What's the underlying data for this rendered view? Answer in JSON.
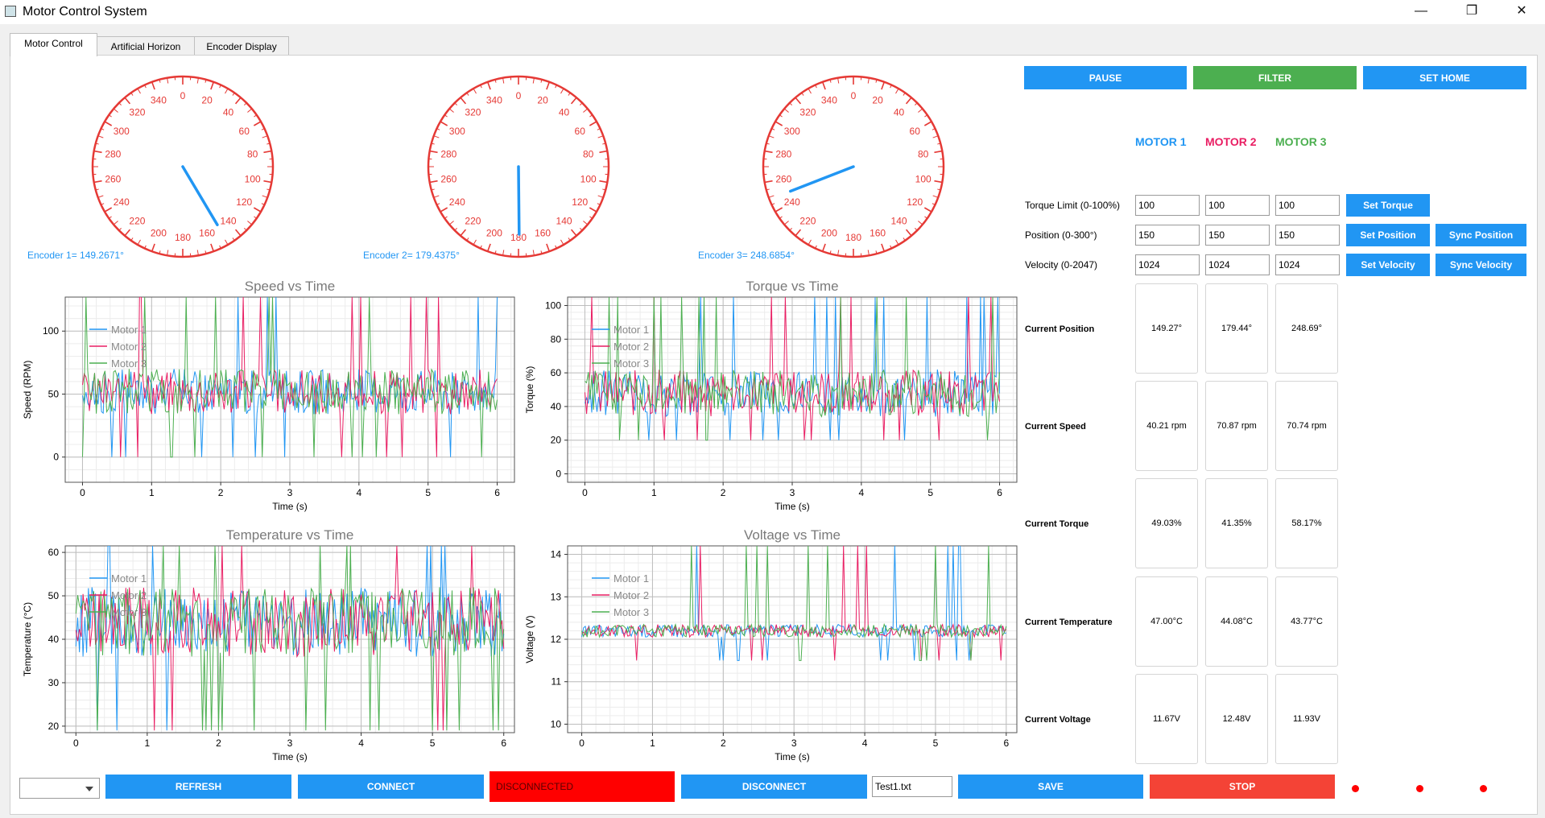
{
  "window": {
    "title": "Motor Control System"
  },
  "tabs": [
    {
      "label": "Motor Control"
    },
    {
      "label": "Artificial Horizon"
    },
    {
      "label": "Encoder Display"
    }
  ],
  "gauges": [
    {
      "label": "Encoder 1= 149.2671°",
      "angle_deg": 149.2671,
      "color": "#2196f3"
    },
    {
      "label": "Encoder 2= 179.4375°",
      "angle_deg": 179.4375,
      "color": "#2196f3"
    },
    {
      "label": "Encoder 3= 248.6854°",
      "angle_deg": 248.6854,
      "color": "#2196f3"
    }
  ],
  "gauge_scale": {
    "ticks": [
      "0",
      "20",
      "40",
      "60",
      "80",
      "100",
      "120",
      "140",
      "160",
      "180",
      "200",
      "220",
      "240",
      "260",
      "280",
      "300",
      "320",
      "340"
    ],
    "color": "#e53935"
  },
  "controls": {
    "pause": "PAUSE",
    "filter": "FILTER",
    "set_home": "SET HOME",
    "motor_headers": [
      {
        "label": "MOTOR 1",
        "color": "#2196f3"
      },
      {
        "label": "MOTOR 2",
        "color": "#e91e63"
      },
      {
        "label": "MOTOR 3",
        "color": "#4caf50"
      }
    ],
    "torque_label": "Torque Limit (0-100%)",
    "torque_values": [
      "100",
      "100",
      "100"
    ],
    "set_torque": "Set Torque",
    "position_label": "Position (0-300°)",
    "position_values": [
      "150",
      "150",
      "150"
    ],
    "set_position": "Set Position",
    "sync_position": "Sync Position",
    "velocity_label": "Velocity (0-2047)",
    "velocity_values": [
      "1024",
      "1024",
      "1024"
    ],
    "set_velocity": "Set Velocity",
    "sync_velocity": "Sync Velocity"
  },
  "readouts": [
    {
      "label": "Current Position",
      "values": [
        "149.27°",
        "179.44°",
        "248.69°"
      ]
    },
    {
      "label": "Current Speed",
      "values": [
        "40.21 rpm",
        "70.87 rpm",
        "70.74 rpm"
      ]
    },
    {
      "label": "Current Torque",
      "values": [
        "49.03%",
        "41.35%",
        "58.17%"
      ]
    },
    {
      "label": "Current Temperature",
      "values": [
        "47.00°C",
        "44.08°C",
        "43.77°C"
      ]
    },
    {
      "label": "Current Voltage",
      "values": [
        "11.67V",
        "12.48V",
        "11.93V"
      ]
    }
  ],
  "chart_data": [
    {
      "type": "line",
      "title": "Speed vs Time",
      "xlabel": "Time (s)",
      "ylabel": "Speed (RPM)",
      "xlim": [
        -0.25,
        6.25
      ],
      "ylim": [
        -20,
        127
      ],
      "xticks": [
        0,
        1,
        2,
        3,
        4,
        5,
        6
      ],
      "yticks": [
        0,
        50,
        100
      ],
      "grid": true,
      "legend_position": "top-left",
      "center": 52,
      "noise": 18,
      "spike": [
        0,
        127
      ],
      "series": [
        {
          "name": "Motor 1",
          "color": "#2196f3"
        },
        {
          "name": "Motor 2",
          "color": "#e91e63"
        },
        {
          "name": "Motor 3",
          "color": "#4caf50"
        }
      ]
    },
    {
      "type": "line",
      "title": "Torque vs Time",
      "xlabel": "Time (s)",
      "ylabel": "Torque (%)",
      "xlim": [
        -0.25,
        6.25
      ],
      "ylim": [
        -5,
        105
      ],
      "xticks": [
        0,
        1,
        2,
        3,
        4,
        5,
        6
      ],
      "yticks": [
        0,
        20,
        40,
        60,
        80,
        100
      ],
      "grid": true,
      "legend_position": "top-left",
      "center": 48,
      "noise": 14,
      "spike": [
        20,
        105
      ],
      "series": [
        {
          "name": "Motor 1",
          "color": "#2196f3"
        },
        {
          "name": "Motor 2",
          "color": "#e91e63"
        },
        {
          "name": "Motor 3",
          "color": "#4caf50"
        }
      ]
    },
    {
      "type": "line",
      "title": "Temperature vs Time",
      "xlabel": "Time (s)",
      "ylabel": "Temperature (°C)",
      "xlim": [
        -0.15,
        6.15
      ],
      "ylim": [
        18.5,
        61.5
      ],
      "xticks": [
        0,
        1,
        2,
        3,
        4,
        5,
        6
      ],
      "yticks": [
        20,
        30,
        40,
        50,
        60
      ],
      "grid": true,
      "legend_position": "top-left",
      "center": 44,
      "noise": 8,
      "spike": [
        19,
        61.5
      ],
      "series": [
        {
          "name": "Motor 1",
          "color": "#2196f3"
        },
        {
          "name": "Motor 2",
          "color": "#e91e63"
        },
        {
          "name": "Motor 3",
          "color": "#4caf50"
        }
      ]
    },
    {
      "type": "line",
      "title": "Voltage vs Time",
      "xlabel": "Time (s)",
      "ylabel": "Voltage (V)",
      "xlim": [
        -0.2,
        6.15
      ],
      "ylim": [
        9.8,
        14.2
      ],
      "xticks": [
        0,
        1,
        2,
        3,
        4,
        5,
        6
      ],
      "yticks": [
        10,
        11,
        12,
        13,
        14
      ],
      "grid": true,
      "legend_position": "top-left",
      "center": 12.2,
      "noise": 0.15,
      "spike": [
        11.5,
        14.2
      ],
      "series": [
        {
          "name": "Motor 1",
          "color": "#2196f3"
        },
        {
          "name": "Motor 2",
          "color": "#e91e63"
        },
        {
          "name": "Motor 3",
          "color": "#4caf50"
        }
      ]
    }
  ],
  "bottom": {
    "combo_value": "",
    "refresh": "REFRESH",
    "connect": "CONNECT",
    "status": "DISCONNECTED",
    "disconnect": "DISCONNECT",
    "filename": "Test1.txt",
    "save": "SAVE",
    "stop": "STOP"
  }
}
